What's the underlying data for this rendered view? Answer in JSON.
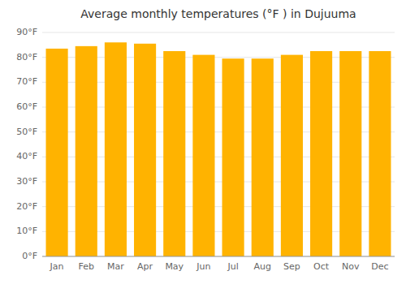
{
  "chart_data": {
    "type": "bar",
    "title": "Average monthly temperatures (°F ) in Dujuuma",
    "categories": [
      "Jan",
      "Feb",
      "Mar",
      "Apr",
      "May",
      "Jun",
      "Jul",
      "Aug",
      "Sep",
      "Oct",
      "Nov",
      "Dec"
    ],
    "values": [
      83.5,
      84.5,
      86.0,
      85.5,
      82.5,
      81.0,
      79.5,
      79.5,
      81.0,
      82.5,
      82.5,
      82.5
    ],
    "color": "#FFB300",
    "ylim": [
      0,
      90
    ],
    "yticks": [
      {
        "value": 0,
        "label": "0°F"
      },
      {
        "value": 10,
        "label": "10°F"
      },
      {
        "value": 20,
        "label": "20°F"
      },
      {
        "value": 30,
        "label": "30°F"
      },
      {
        "value": 40,
        "label": "40°F"
      },
      {
        "value": 50,
        "label": "50°F"
      },
      {
        "value": 60,
        "label": "60°F"
      },
      {
        "value": 70,
        "label": "70°F"
      },
      {
        "value": 80,
        "label": "80°F"
      },
      {
        "value": 90,
        "label": "90°F"
      }
    ],
    "grid": true
  }
}
